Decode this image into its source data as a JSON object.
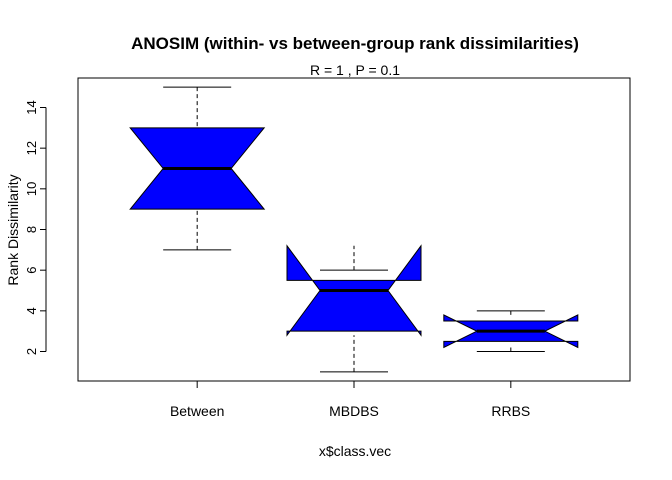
{
  "chart_data": {
    "type": "boxplot",
    "title": "ANOSIM (within- vs between-group rank dissimilarities)",
    "subtitle": "R =  1 ,  P =  0.1",
    "xlabel": "x$class.vec",
    "ylabel": "Rank Dissimilarity",
    "ylim": [
      0.55,
      15.45
    ],
    "yticks": [
      2,
      4,
      6,
      8,
      10,
      12,
      14
    ],
    "notched": true,
    "box_color": "#0000FF",
    "grid": false,
    "categories": [
      "Between",
      "MBDBS",
      "RRBS"
    ],
    "boxes": [
      {
        "category": "Between",
        "whisker_low": 7,
        "q1": 9,
        "median": 11,
        "q3": 13,
        "whisker_high": 15,
        "notch_low": 9.0,
        "notch_high": 13.0
      },
      {
        "category": "MBDBS",
        "whisker_low": 1,
        "q1": 3,
        "median": 5,
        "q3": 5.5,
        "whisker_high": 6,
        "notch_low": 2.8,
        "notch_high": 7.2
      },
      {
        "category": "RRBS",
        "whisker_low": 2,
        "q1": 2.5,
        "median": 3,
        "q3": 3.5,
        "whisker_high": 4,
        "notch_low": 2.2,
        "notch_high": 3.8
      }
    ]
  }
}
